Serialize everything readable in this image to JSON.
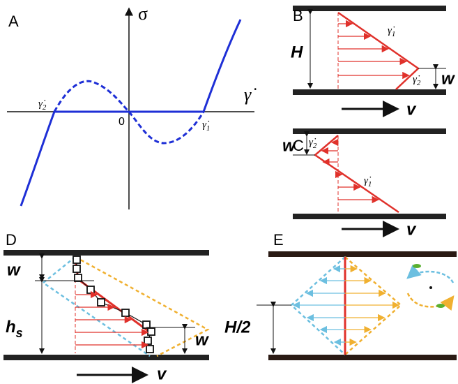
{
  "panel_a": {
    "label": "A",
    "y_axis": "σ",
    "x_axis": "γ̇",
    "origin": "0",
    "rate_2": {
      "symbol": "γ̇",
      "sub": "2"
    },
    "rate_1": {
      "symbol": "γ̇",
      "sub": "1"
    }
  },
  "panel_b": {
    "label": "B",
    "height": "H",
    "rate_1": {
      "symbol": "γ̇",
      "sub": "1"
    },
    "rate_2": {
      "symbol": "γ̇",
      "sub": "2"
    },
    "width": "w",
    "velocity": "v"
  },
  "panel_c": {
    "label": "C",
    "width": "w",
    "rate_2": {
      "symbol": "γ̇",
      "sub": "2"
    },
    "rate_1": {
      "symbol": "γ̇",
      "sub": "1"
    },
    "velocity": "v"
  },
  "panel_d": {
    "label": "D",
    "width_top": "w",
    "height": {
      "symbol": "h",
      "sub": "s"
    },
    "width_bottom": "w",
    "velocity": "v"
  },
  "panel_e": {
    "label": "E",
    "half_height": "H/2"
  }
}
